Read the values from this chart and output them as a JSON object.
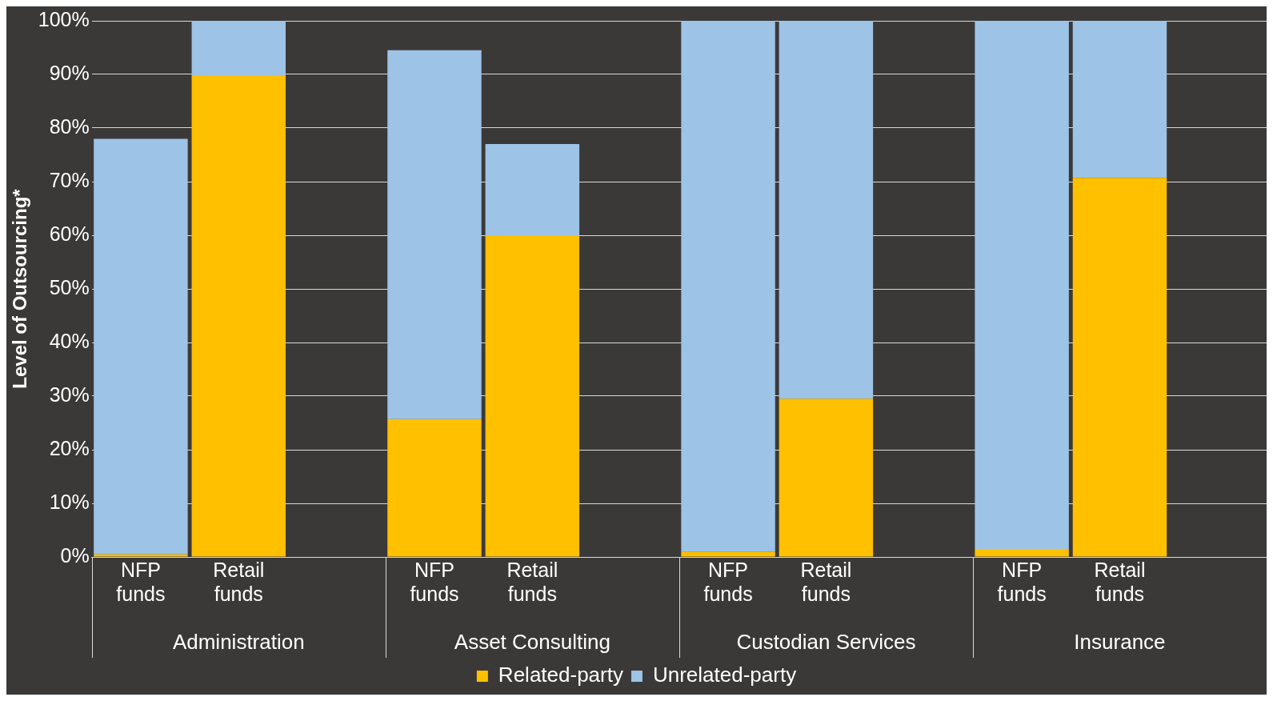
{
  "chart_data": {
    "type": "bar",
    "stacked": true,
    "ylabel": "Level of Outsourcing*",
    "categories": [
      "NFP funds",
      "Retail funds",
      null,
      "NFP funds",
      "Retail funds",
      null,
      "NFP funds",
      "Retail funds",
      null,
      "NFP funds",
      "Retail funds",
      null
    ],
    "series": [
      {
        "name": "Related-party",
        "color": "#ffc000",
        "values": [
          0.5,
          89.7,
          null,
          25.7,
          60,
          null,
          1,
          29.5,
          null,
          1.5,
          70.7,
          null
        ]
      },
      {
        "name": "Unrelated-party",
        "color": "#9dc3e6",
        "values": [
          77.5,
          10.3,
          null,
          68.8,
          17,
          null,
          99,
          70.5,
          null,
          98.5,
          29.3,
          null
        ]
      }
    ],
    "annotations": [
      "Administration",
      "Asset Consulting",
      "Custodian Services",
      "Insurance"
    ],
    "ylim": [
      0,
      100
    ],
    "yticks": [
      {
        "value": 0,
        "label": "0%"
      },
      {
        "value": 10,
        "label": "10%"
      },
      {
        "value": 20,
        "label": "20%"
      },
      {
        "value": 30,
        "label": "30%"
      },
      {
        "value": 40,
        "label": "40%"
      },
      {
        "value": 50,
        "label": "50%"
      },
      {
        "value": 60,
        "label": "60%"
      },
      {
        "value": 70,
        "label": "70%"
      },
      {
        "value": 80,
        "label": "80%"
      },
      {
        "value": 90,
        "label": "90%"
      },
      {
        "value": 100,
        "label": "100%"
      }
    ],
    "grid": "y",
    "legend": "bottom"
  }
}
